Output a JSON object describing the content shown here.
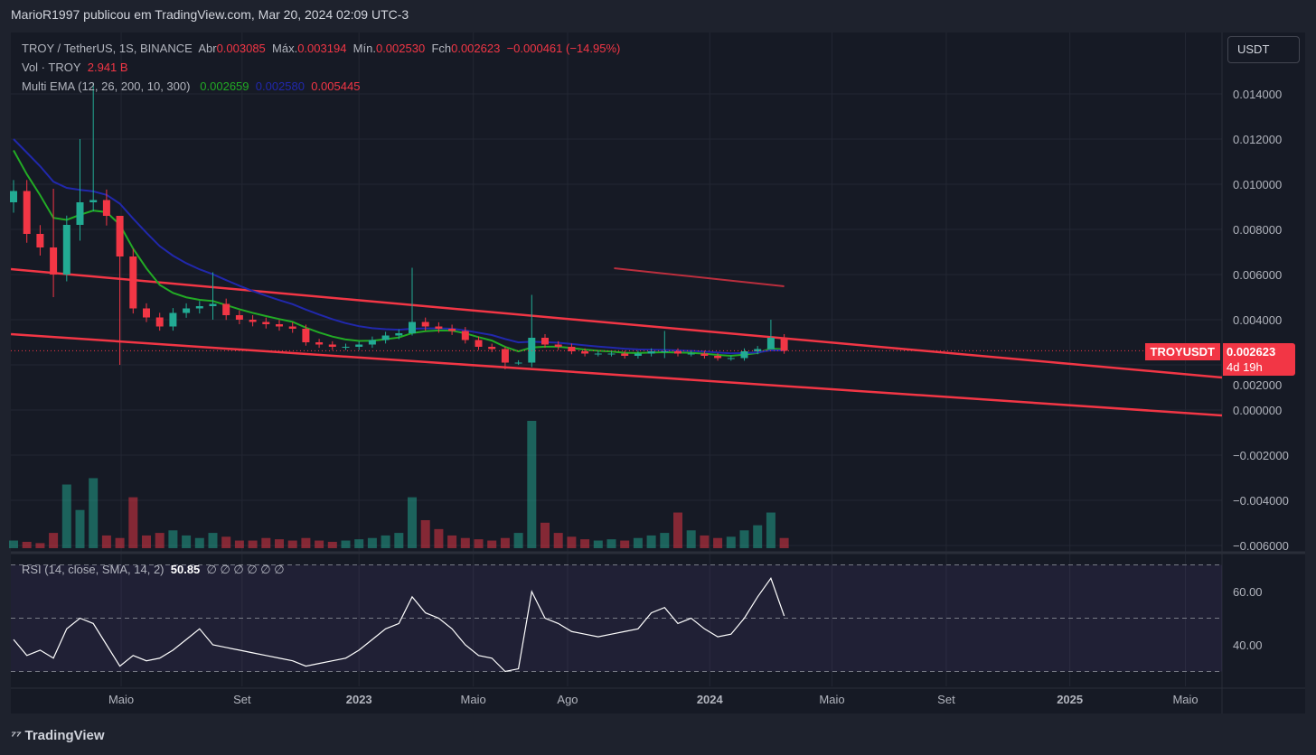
{
  "header": {
    "published": "MarioR1997 publicou em TradingView.com, Mar 20, 2024 02:09 UTC-3"
  },
  "legend": {
    "symbol": "TROY / TetherUS, 1S, BINANCE",
    "open_label": "Abr",
    "open": "0.003085",
    "high_label": "Máx.",
    "high": "0.003194",
    "low_label": "Mín.",
    "low": "0.002530",
    "close_label": "Fch",
    "close": "0.002623",
    "change": "−0.000461 (−14.95%)",
    "vol_label": "Vol · TROY",
    "vol": "2.941 B",
    "ema_label": "Multi EMA (12, 26, 200, 10, 300)",
    "ema1": "0.002659",
    "ema2": "0.002580",
    "ema3": "0.005445",
    "rsi_label": "RSI (14, close, SMA, 14, 2)",
    "rsi_value": "50.85",
    "rsi_extra": "∅ ∅ ∅ ∅ ∅ ∅"
  },
  "currency": "USDT",
  "price_tag": {
    "symbol": "TROYUSDT",
    "price": "0.002623",
    "countdown": "4d 19h"
  },
  "footer": {
    "brand": "TradingView"
  },
  "colors": {
    "up": "#22ab94",
    "down": "#f23645",
    "ema_fast": "#22ab25",
    "ema_slow": "#2128ac",
    "trend": "#f23645"
  },
  "chart_data": {
    "type": "candlestick",
    "price_ticks": [
      "0.014000",
      "0.012000",
      "0.010000",
      "0.008000",
      "0.006000",
      "0.004000",
      "0.002000",
      "0.000000",
      "−0.002000",
      "−0.004000",
      "−0.006000"
    ],
    "price_tick_values": [
      0.014,
      0.012,
      0.01,
      0.008,
      0.006,
      0.004,
      0.002,
      0,
      -0.002,
      -0.004,
      -0.006
    ],
    "rsi_ticks": [
      "60.00",
      "40.00"
    ],
    "rsi_tick_values": [
      60,
      40
    ],
    "rsi_bands": [
      70,
      50,
      30
    ],
    "time_ticks": [
      {
        "label": "Maio",
        "i": 8.1
      },
      {
        "label": "Set",
        "i": 17.2
      },
      {
        "label": "2023",
        "i": 26,
        "bold": true
      },
      {
        "label": "Maio",
        "i": 34.6
      },
      {
        "label": "Ago",
        "i": 41.7
      },
      {
        "label": "2024",
        "i": 52.4,
        "bold": true
      },
      {
        "label": "Maio",
        "i": 61.6
      },
      {
        "label": "Set",
        "i": 70.2
      },
      {
        "label": "2025",
        "i": 79.5,
        "bold": true
      },
      {
        "label": "Maio",
        "i": 88.2
      }
    ],
    "closes": [
      0.0097,
      0.0078,
      0.0072,
      0.006,
      0.0082,
      0.0092,
      0.0093,
      0.0086,
      0.0068,
      0.0045,
      0.0041,
      0.0037,
      0.0043,
      0.0045,
      0.0046,
      0.0047,
      0.0042,
      0.004,
      0.0039,
      0.0038,
      0.0037,
      0.0036,
      0.003,
      0.0029,
      0.0028,
      0.0028,
      0.0029,
      0.0031,
      0.0033,
      0.0034,
      0.0039,
      0.0037,
      0.0036,
      0.0035,
      0.0031,
      0.0028,
      0.0027,
      0.0021,
      0.0021,
      0.0032,
      0.0029,
      0.0028,
      0.0026,
      0.0025,
      0.0025,
      0.0025,
      0.0024,
      0.0025,
      0.0026,
      0.0026,
      0.0025,
      0.0025,
      0.0024,
      0.0023,
      0.0023,
      0.0026,
      0.0027,
      0.0032,
      0.0026236
    ],
    "first_open": 0.0092,
    "spikes": [
      {
        "i": 3,
        "high": 0.0098,
        "low": 0.005
      },
      {
        "i": 5,
        "high": 0.012,
        "low": 0.0075
      },
      {
        "i": 6,
        "high": 0.0145,
        "low": 0.0088
      },
      {
        "i": 8,
        "high": 0.008,
        "low": 0.002
      },
      {
        "i": 15,
        "high": 0.0061,
        "low": 0.004
      },
      {
        "i": 30,
        "high": 0.0063,
        "low": 0.0033
      },
      {
        "i": 37,
        "high": 0.0028,
        "low": 0.0018
      },
      {
        "i": 39,
        "high": 0.0051,
        "low": 0.0019
      },
      {
        "i": 49,
        "high": 0.0035,
        "low": 0.0023
      },
      {
        "i": 57,
        "high": 0.004,
        "low": 0.0028
      }
    ],
    "volume": [
      6,
      5,
      4,
      12,
      50,
      30,
      55,
      10,
      8,
      40,
      10,
      12,
      14,
      10,
      8,
      12,
      9,
      6,
      6,
      8,
      7,
      6,
      8,
      6,
      5,
      6,
      7,
      8,
      10,
      12,
      40,
      22,
      15,
      10,
      8,
      7,
      6,
      8,
      12,
      100,
      20,
      12,
      9,
      7,
      6,
      7,
      6,
      8,
      10,
      12,
      28,
      14,
      10,
      8,
      9,
      14,
      18,
      28,
      8
    ],
    "rsi": [
      42,
      36,
      38,
      35,
      46,
      50,
      48,
      40,
      32,
      36,
      34,
      35,
      38,
      42,
      46,
      40,
      39,
      38,
      37,
      36,
      35,
      34,
      32,
      33,
      34,
      35,
      38,
      42,
      46,
      48,
      58,
      52,
      50,
      46,
      40,
      36,
      35,
      30,
      31,
      60,
      50,
      48,
      45,
      44,
      43,
      44,
      45,
      46,
      52,
      54,
      48,
      50,
      46,
      43,
      44,
      50,
      58,
      65,
      50.85
    ],
    "ema_periods": [
      12,
      26
    ],
    "trendlines": [
      {
        "name": "upper-channel",
        "from": [
          -0.2,
          0.00624
        ],
        "to": [
          90.95,
          0.00144
        ]
      },
      {
        "name": "lower-channel",
        "from": [
          -0.2,
          0.00336
        ],
        "to": [
          90.95,
          -0.00024
        ]
      },
      {
        "name": "short-line",
        "from": [
          45.2,
          0.00628
        ],
        "to": [
          58.0,
          0.00548
        ]
      }
    ],
    "last_price": 0.002623
  }
}
